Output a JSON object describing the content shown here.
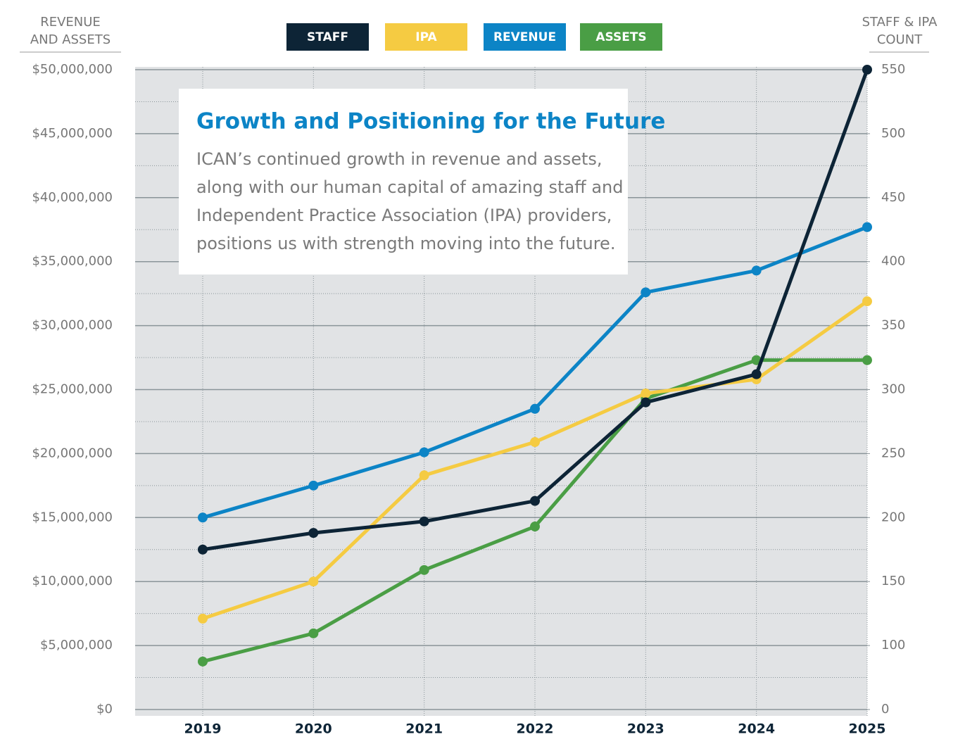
{
  "chart_data": {
    "type": "line",
    "title": "Growth and Positioning for the Future",
    "text": [
      "ICAN’s continued growth in revenue and assets,",
      "along with our human capital of amazing staff and",
      "Independent Practice Association (IPA) providers,",
      "positions us with strength moving into the future."
    ],
    "y_label": [
      "REVENUE",
      "AND ASSETS"
    ],
    "y2_label": [
      "STAFF & IPA",
      "COUNT"
    ],
    "categories": [
      "2019",
      "2020",
      "2021",
      "2022",
      "2023",
      "2024",
      "2025"
    ],
    "series": [
      {
        "name": "STAFF",
        "color": "#0d2436",
        "axis": "y2",
        "values": [
          175,
          188,
          197,
          213,
          290,
          312,
          550
        ]
      },
      {
        "name": "IPA",
        "color": "#f5cb42",
        "axis": "y2",
        "values": [
          121,
          150,
          233,
          259,
          297,
          308,
          369
        ]
      },
      {
        "name": "REVENUE",
        "color": "#0c84c6",
        "values": [
          15000000,
          17500000,
          20100000,
          23500000,
          32600000,
          34300000,
          37700000
        ]
      },
      {
        "name": "ASSETS",
        "color": "#4a9e45",
        "values": [
          3750000,
          5950000,
          10900000,
          14300000,
          24300000,
          27300000,
          27300000
        ]
      }
    ],
    "ylim": [
      0,
      50000000
    ],
    "yticks": [
      {
        "value": 0,
        "label": "$0"
      },
      {
        "value": 5000000,
        "label": "$5,000,000"
      },
      {
        "value": 10000000,
        "label": "$10,000,000"
      },
      {
        "value": 15000000,
        "label": "$15,000,000"
      },
      {
        "value": 20000000,
        "label": "$20,000,000"
      },
      {
        "value": 25000000,
        "label": "$25,000,000"
      },
      {
        "value": 30000000,
        "label": "$30,000,000"
      },
      {
        "value": 35000000,
        "label": "$35,000,000"
      },
      {
        "value": 40000000,
        "label": "$40,000,000"
      },
      {
        "value": 45000000,
        "label": "$45,000,000"
      },
      {
        "value": 50000000,
        "label": "$50,000,000"
      }
    ],
    "y2lim": [
      50,
      550
    ],
    "y2ticks": [
      {
        "value": 50,
        "label": "0"
      },
      100,
      150,
      200,
      250,
      300,
      350,
      400,
      450,
      500,
      550
    ],
    "grid": true
  }
}
